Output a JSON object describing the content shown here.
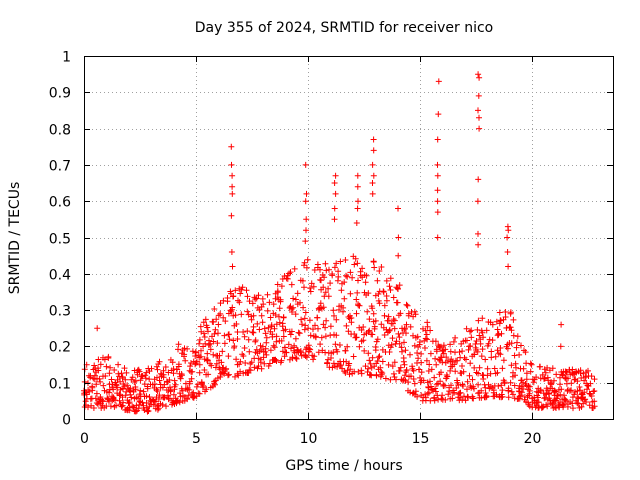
{
  "chart_data": {
    "type": "scatter",
    "title": "Day 355 of 2024, SRMTID for receiver nico",
    "xlabel": "GPS time / hours",
    "ylabel": "SRMTID / TECUs",
    "xlim": [
      0,
      23.6
    ],
    "ylim": [
      0,
      1
    ],
    "x_ticks": [
      0,
      5,
      10,
      15,
      20
    ],
    "y_ticks": [
      0,
      0.1,
      0.2,
      0.3,
      0.4,
      0.5,
      0.6,
      0.7,
      0.8,
      0.9,
      1
    ],
    "x_tick_labels": [
      "0",
      "5",
      "10",
      "15",
      "20"
    ],
    "y_tick_labels": [
      "0",
      "0.1",
      "0.2",
      "0.3",
      "0.4",
      "0.5",
      "0.6",
      "0.7",
      "0.8",
      "0.9",
      "1"
    ],
    "grid": true,
    "marker": "+",
    "color": "#ff0000",
    "time_range_hours": [
      0,
      22.8
    ],
    "envelope": [
      {
        "t": 0,
        "lo": 0.03,
        "hi": 0.15
      },
      {
        "t": 1,
        "lo": 0.03,
        "hi": 0.18
      },
      {
        "t": 2,
        "lo": 0.02,
        "hi": 0.15
      },
      {
        "t": 3,
        "lo": 0.02,
        "hi": 0.14
      },
      {
        "t": 4,
        "lo": 0.04,
        "hi": 0.2
      },
      {
        "t": 5,
        "lo": 0.06,
        "hi": 0.24
      },
      {
        "t": 6,
        "lo": 0.1,
        "hi": 0.32
      },
      {
        "t": 7,
        "lo": 0.12,
        "hi": 0.38
      },
      {
        "t": 8,
        "lo": 0.14,
        "hi": 0.33
      },
      {
        "t": 9,
        "lo": 0.16,
        "hi": 0.4
      },
      {
        "t": 10,
        "lo": 0.17,
        "hi": 0.45
      },
      {
        "t": 11,
        "lo": 0.14,
        "hi": 0.43
      },
      {
        "t": 12,
        "lo": 0.12,
        "hi": 0.45
      },
      {
        "t": 13,
        "lo": 0.12,
        "hi": 0.45
      },
      {
        "t": 14,
        "lo": 0.1,
        "hi": 0.38
      },
      {
        "t": 15,
        "lo": 0.05,
        "hi": 0.3
      },
      {
        "t": 16,
        "lo": 0.05,
        "hi": 0.2
      },
      {
        "t": 17,
        "lo": 0.05,
        "hi": 0.25
      },
      {
        "t": 18,
        "lo": 0.06,
        "hi": 0.3
      },
      {
        "t": 19,
        "lo": 0.06,
        "hi": 0.3
      },
      {
        "t": 20,
        "lo": 0.03,
        "hi": 0.15
      },
      {
        "t": 21,
        "lo": 0.03,
        "hi": 0.14
      },
      {
        "t": 22,
        "lo": 0.03,
        "hi": 0.14
      },
      {
        "t": 22.8,
        "lo": 0.03,
        "hi": 0.13
      }
    ],
    "spikes": [
      {
        "t": 6.6,
        "values": [
          0.75,
          0.7,
          0.67,
          0.64,
          0.62,
          0.56,
          0.46,
          0.42
        ]
      },
      {
        "t": 9.9,
        "values": [
          0.7,
          0.62,
          0.6,
          0.55,
          0.52,
          0.49
        ]
      },
      {
        "t": 11.2,
        "values": [
          0.67,
          0.65,
          0.62,
          0.58,
          0.55
        ]
      },
      {
        "t": 12.2,
        "values": [
          0.67,
          0.64,
          0.6,
          0.58,
          0.54
        ]
      },
      {
        "t": 12.9,
        "values": [
          0.77,
          0.74,
          0.7,
          0.67,
          0.65,
          0.62
        ]
      },
      {
        "t": 14.0,
        "values": [
          0.58,
          0.5,
          0.45
        ]
      },
      {
        "t": 15.8,
        "values": [
          0.93,
          0.84,
          0.77,
          0.7,
          0.67,
          0.63,
          0.6,
          0.57,
          0.5
        ]
      },
      {
        "t": 17.6,
        "values": [
          0.95,
          0.94,
          0.89,
          0.85,
          0.83,
          0.8,
          0.66,
          0.6,
          0.51,
          0.48
        ]
      },
      {
        "t": 18.9,
        "values": [
          0.53,
          0.52,
          0.5,
          0.46,
          0.42
        ]
      },
      {
        "t": 21.3,
        "values": [
          0.26,
          0.2
        ]
      },
      {
        "t": 0.6,
        "values": [
          0.25
        ]
      }
    ]
  }
}
